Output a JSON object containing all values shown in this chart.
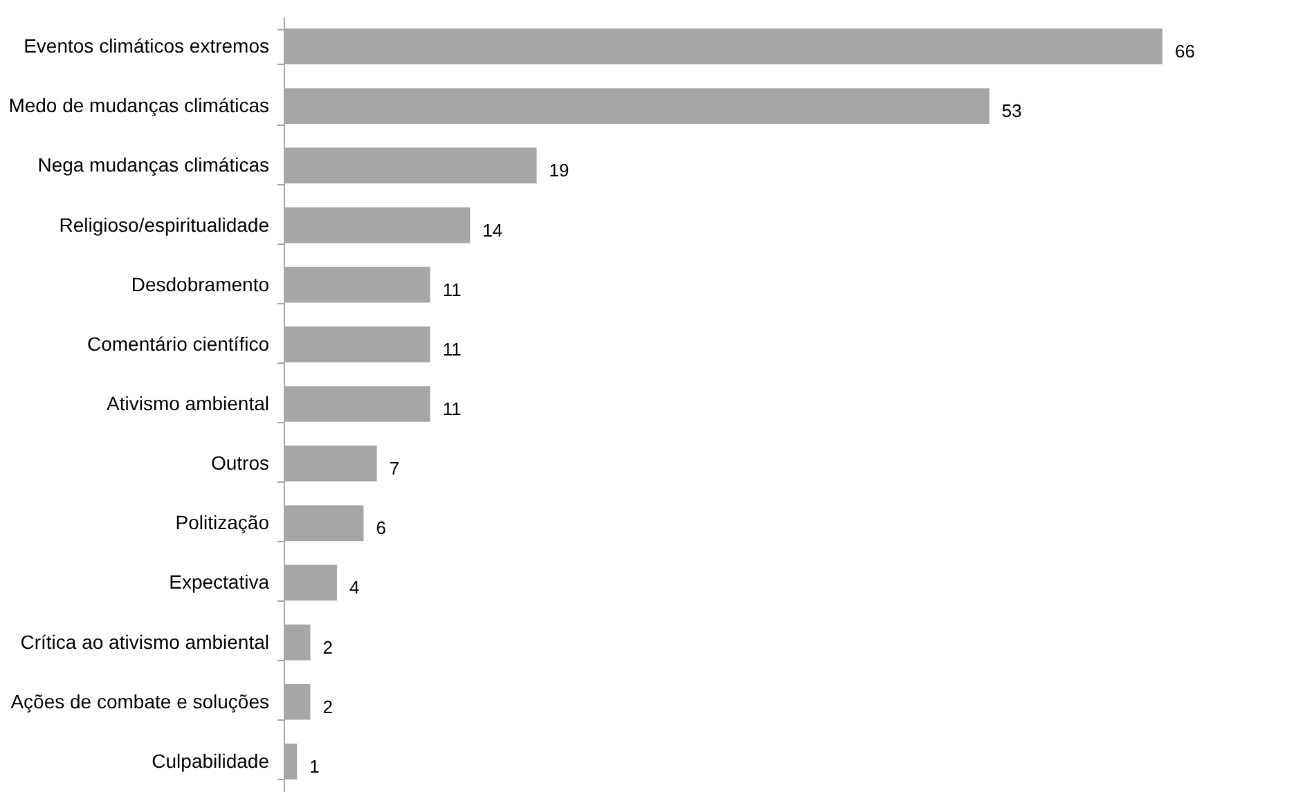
{
  "chart_data": {
    "type": "bar",
    "orientation": "horizontal",
    "data_labels": true,
    "grid": false,
    "categories": [
      "Eventos climáticos extremos",
      "Medo de mudanças climáticas",
      "Nega mudanças climáticas",
      "Religioso/espiritualidade",
      "Desdobramento",
      "Comentário científico",
      "Ativismo ambiental",
      "Outros",
      "Politização",
      "Expectativa",
      "Crítica ao ativismo ambiental",
      "Ações de combate e soluções",
      "Culpabilidade"
    ],
    "values": [
      66,
      53,
      19,
      14,
      11,
      11,
      11,
      7,
      6,
      4,
      2,
      2,
      1
    ],
    "color": "#a6a6a6",
    "tick_labels": "y"
  }
}
